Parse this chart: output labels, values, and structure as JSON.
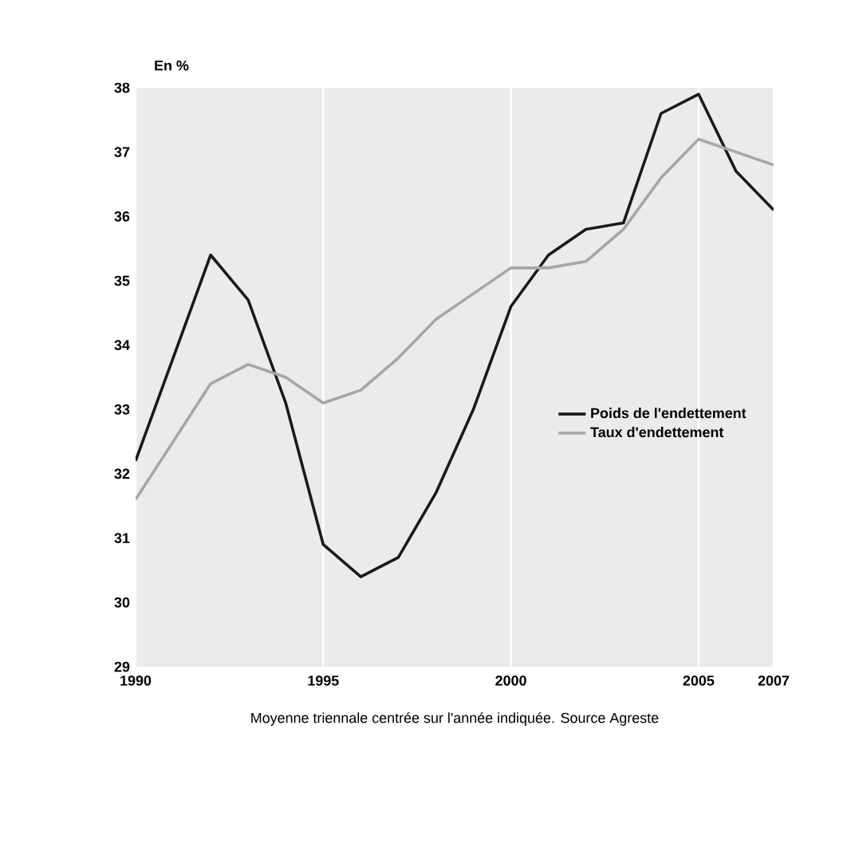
{
  "chart_data": {
    "type": "line",
    "ylabel": "En %",
    "annotations": [
      "Moyenne triennale centrée sur l'année indiquée. Source Agreste"
    ],
    "x": [
      1990,
      1991,
      1992,
      1993,
      1994,
      1995,
      1996,
      1997,
      1998,
      1999,
      2000,
      2001,
      2002,
      2003,
      2004,
      2005,
      2006,
      2007
    ],
    "series": [
      {
        "name": "Poids de l'endettement",
        "color": "#1a1a1a",
        "values": [
          32.2,
          33.8,
          35.4,
          34.7,
          33.1,
          30.9,
          30.4,
          30.7,
          31.7,
          33.0,
          34.6,
          35.4,
          35.8,
          35.9,
          37.6,
          37.9,
          36.7,
          36.1
        ]
      },
      {
        "name": "Taux d'endettement",
        "color": "#a6a6a6",
        "values": [
          31.6,
          32.5,
          33.4,
          33.7,
          33.5,
          33.1,
          33.3,
          33.8,
          34.4,
          34.8,
          35.2,
          35.2,
          35.3,
          35.8,
          36.6,
          37.2,
          37.0,
          36.8
        ]
      }
    ],
    "xlim": [
      1990,
      2007
    ],
    "xticks": [
      1990,
      1995,
      2000,
      2005,
      2007
    ],
    "ylim": [
      29,
      38
    ],
    "yticks": [
      29,
      30,
      31,
      32,
      33,
      34,
      35,
      36,
      37,
      38
    ],
    "grid": "x",
    "legend": "right",
    "marker": "none",
    "line_style": "solid"
  }
}
